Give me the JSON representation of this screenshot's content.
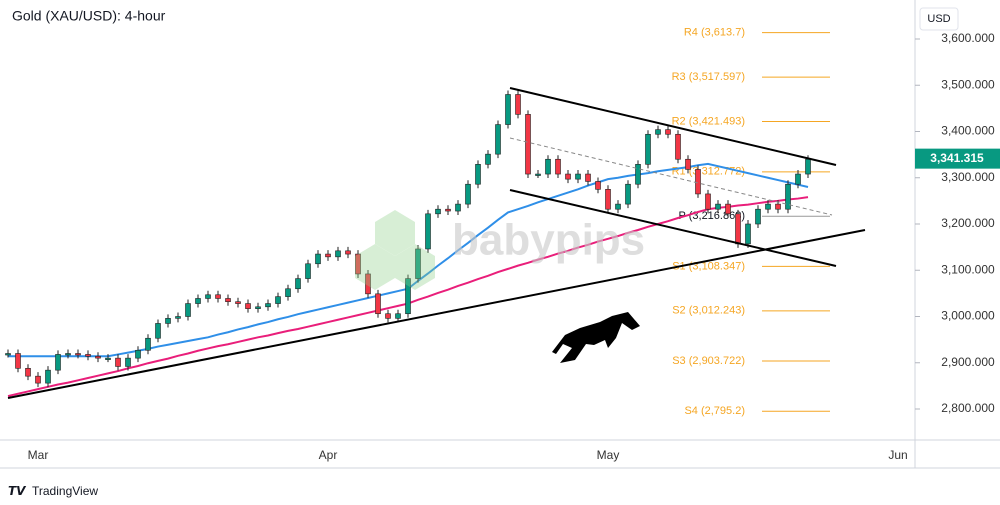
{
  "chart_data": {
    "type": "candlestick",
    "title": "Gold (XAU/USD): 4-hour",
    "currency": "USD",
    "watermark": "babypips",
    "footer": "TradingView",
    "categories": [
      null,
      null,
      null,
      "Mar",
      null,
      null,
      null,
      null,
      null,
      null,
      null,
      null,
      null,
      null,
      null,
      null,
      null,
      null,
      null,
      null,
      null,
      null,
      null,
      null,
      null,
      null,
      null,
      null,
      null,
      null,
      null,
      null,
      "Apr",
      null,
      null,
      null,
      null,
      null,
      null,
      null,
      null,
      null,
      null,
      null,
      null,
      null,
      null,
      null,
      null,
      null,
      null,
      null,
      null,
      null,
      null,
      null,
      null,
      null,
      null,
      null,
      "May",
      null,
      null,
      null,
      null,
      null,
      null,
      null,
      null,
      null,
      null,
      null,
      null,
      null,
      null,
      null,
      null,
      null,
      null,
      null,
      null,
      null,
      null,
      null,
      null,
      null,
      null,
      null,
      null,
      "Jun",
      null
    ],
    "series": [
      {
        "color": "#089981",
        "down_color": "#f23645",
        "values": [
          2920,
          2888,
          2871,
          2856,
          2884,
          2918,
          2920,
          2918,
          2914,
          2910,
          2910,
          2892,
          2910,
          2927,
          2953,
          2985,
          2996,
          3000,
          3028,
          3039,
          3047,
          3039,
          3032,
          3028,
          3017,
          3021,
          3028,
          3043,
          3060,
          3082,
          3114,
          3135,
          3129,
          3142,
          3135,
          3092,
          3049,
          3006,
          2996,
          3006,
          3082,
          3146,
          3222,
          3232,
          3228,
          3243,
          3286,
          3329,
          3351,
          3415,
          3480,
          3437,
          3308,
          3308,
          3340,
          3308,
          3297,
          3308,
          3292,
          3275,
          3232,
          3243,
          3286,
          3329,
          3394,
          3404,
          3394,
          3340,
          3318,
          3265,
          3232,
          3243,
          3222,
          3157,
          3200,
          3232,
          3243,
          3232,
          3286,
          3308,
          3340,
          null,
          null,
          null,
          null,
          null,
          null,
          null,
          null,
          null,
          null
        ]
      },
      {
        "color": "#2f8fe8",
        "type": "line",
        "values": [
          2914,
          2914,
          2914,
          2914,
          2914,
          2914,
          2914,
          2914,
          2914,
          2914,
          2914,
          2918,
          2922,
          2926,
          2930,
          2935,
          2939,
          2943,
          2947,
          2951,
          2955,
          2961,
          2966,
          2972,
          2977,
          2983,
          2988,
          2994,
          2999,
          3005,
          3010,
          3015,
          3020,
          3025,
          3030,
          3035,
          3040,
          3045,
          3050,
          3055,
          3060,
          3077,
          3093,
          3110,
          3126,
          3143,
          3159,
          3176,
          3192,
          3209,
          3225,
          3232,
          3239,
          3247,
          3254,
          3261,
          3268,
          3275,
          3283,
          3290,
          3297,
          3300,
          3304,
          3307,
          3310,
          3314,
          3317,
          3320,
          3323,
          3327,
          3330,
          3325,
          3320,
          3315,
          3310,
          3305,
          3300,
          3295,
          3290,
          3285,
          3280,
          null,
          null,
          null,
          null,
          null,
          null,
          null,
          null,
          null,
          null
        ]
      },
      {
        "color": "#e91e7a",
        "type": "line",
        "values": [
          2828,
          2833,
          2838,
          2843,
          2848,
          2853,
          2857,
          2862,
          2867,
          2872,
          2877,
          2882,
          2888,
          2893,
          2899,
          2904,
          2909,
          2915,
          2920,
          2926,
          2931,
          2936,
          2940,
          2945,
          2950,
          2955,
          2959,
          2964,
          2969,
          2973,
          2978,
          2983,
          2988,
          2993,
          2998,
          3003,
          3008,
          3013,
          3018,
          3023,
          3028,
          3036,
          3043,
          3051,
          3058,
          3066,
          3073,
          3081,
          3088,
          3096,
          3103,
          3110,
          3116,
          3123,
          3129,
          3136,
          3142,
          3149,
          3155,
          3162,
          3168,
          3174,
          3181,
          3187,
          3194,
          3200,
          3206,
          3213,
          3219,
          3226,
          3232,
          3235,
          3237,
          3240,
          3242,
          3245,
          3248,
          3250,
          3253,
          3255,
          3258,
          null,
          null,
          null,
          null,
          null,
          null,
          null,
          null,
          null,
          null
        ]
      }
    ],
    "last_price": {
      "value": 3341.315,
      "label": "3,341.315",
      "color": "#089981"
    },
    "pivots": [
      {
        "label": "R4 (3,613.7)",
        "value": 3613.7,
        "color": "#f5a623"
      },
      {
        "label": "R3 (3,517.597)",
        "value": 3517.597,
        "color": "#f5a623"
      },
      {
        "label": "R2 (3,421.493)",
        "value": 3421.493,
        "color": "#f5a623"
      },
      {
        "label": "R1 (3,312.772)",
        "value": 3312.772,
        "color": "#f5a623"
      },
      {
        "label": "P (3,216.868)",
        "value": 3216.868,
        "color": "#131722"
      },
      {
        "label": "S1 (3,108.347)",
        "value": 3108.347,
        "color": "#f5a623"
      },
      {
        "label": "S2 (3,012.243)",
        "value": 3012.243,
        "color": "#f5a623"
      },
      {
        "label": "S3 (2,903.722)",
        "value": 2903.722,
        "color": "#f5a623"
      },
      {
        "label": "S4 (2,795.2)",
        "value": 2795.2,
        "color": "#f5a623"
      }
    ],
    "ylim": [
      2733,
      3667
    ],
    "yticks": [
      {
        "value": 3600,
        "label": "3,600.000"
      },
      {
        "value": 3500,
        "label": "3,500.000"
      },
      {
        "value": 3400,
        "label": "3,400.000"
      },
      {
        "value": 3300,
        "label": "3,300.000"
      },
      {
        "value": 3200,
        "label": "3,200.000"
      },
      {
        "value": 3100,
        "label": "3,100.000"
      },
      {
        "value": 3000,
        "label": "3,000.000"
      },
      {
        "value": 2900,
        "label": "2,900.000"
      },
      {
        "value": 2800,
        "label": "2,800.000"
      }
    ]
  }
}
